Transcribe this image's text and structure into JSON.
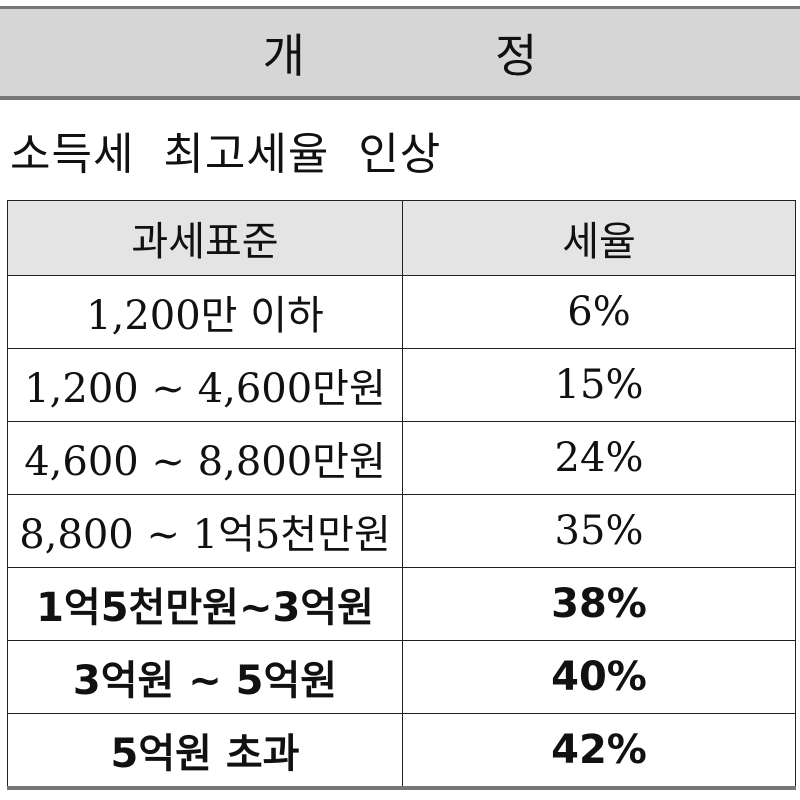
{
  "header": {
    "title": "개정"
  },
  "subtitle": "소득세 최고세율 인상",
  "table": {
    "columns": [
      "과세표준",
      "세율"
    ],
    "rows": [
      {
        "bracket": "1,200만 이하",
        "rate": "6%",
        "bold": false
      },
      {
        "bracket": "1,200 ~ 4,600만원",
        "rate": "15%",
        "bold": false
      },
      {
        "bracket": "4,600 ~ 8,800만원",
        "rate": "24%",
        "bold": false
      },
      {
        "bracket": "8,800 ~ 1억5천만원",
        "rate": "35%",
        "bold": false
      },
      {
        "bracket": "1억5천만원~3억원",
        "rate": "38%",
        "bold": true
      },
      {
        "bracket": "3억원 ~ 5억원",
        "rate": "40%",
        "bold": true
      },
      {
        "bracket": "5억원 초과",
        "rate": "42%",
        "bold": true
      }
    ]
  }
}
